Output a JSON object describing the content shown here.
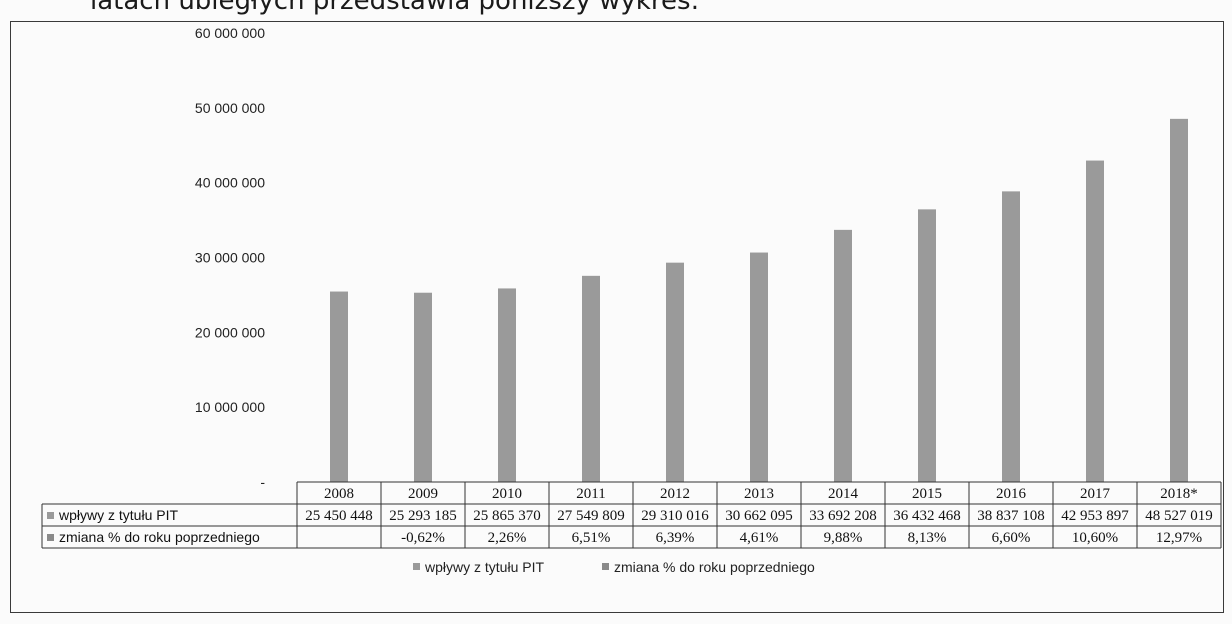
{
  "page": {
    "heading": "latach ubiegłych przedstawia poniższy wykres:"
  },
  "chart_data": {
    "type": "bar",
    "title": "",
    "xlabel": "",
    "ylabel": "",
    "ylim": [
      0,
      60000000
    ],
    "y_ticks": [
      "-",
      "10 000 000",
      "20 000 000",
      "30 000 000",
      "40 000 000",
      "50 000 000",
      "60 000 000"
    ],
    "categories": [
      "2008",
      "2009",
      "2010",
      "2011",
      "2012",
      "2013",
      "2014",
      "2015",
      "2016",
      "2017",
      "2018*"
    ],
    "series": [
      {
        "name": "wpływy z tytułu PIT",
        "values": [
          25450448,
          25293185,
          25865370,
          27549809,
          29310016,
          30662095,
          33692208,
          36432468,
          38837108,
          42953897,
          48527019
        ],
        "labels": [
          "25 450 448",
          "25 293 185",
          "25 865 370",
          "27 549 809",
          "29 310 016",
          "30 662 095",
          "33 692 208",
          "36 432 468",
          "38 837 108",
          "42 953 897",
          "48 527 019"
        ],
        "color": "#9a9a9a"
      },
      {
        "name": "zmiana % do roku poprzedniego",
        "values": [
          null,
          -0.62,
          2.26,
          6.51,
          6.39,
          4.61,
          9.88,
          8.13,
          6.6,
          10.6,
          12.97
        ],
        "labels": [
          "",
          "-0,62%",
          "2,26%",
          "6,51%",
          "6,39%",
          "4,61%",
          "9,88%",
          "8,13%",
          "6,60%",
          "10,60%",
          "12,97%"
        ],
        "color": "#8a8a8a"
      }
    ],
    "data_table": true,
    "legend_position": "bottom",
    "grid": false
  }
}
